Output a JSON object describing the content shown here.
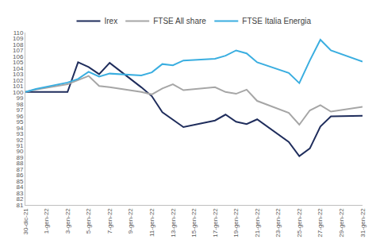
{
  "chart_data": {
    "type": "line",
    "categories": [
      "30-dic-21",
      null,
      "1-gen-22",
      null,
      "3-gen-22",
      null,
      "5-gen-22",
      null,
      "7-gen-22",
      null,
      "9-gen-22",
      null,
      "11-gen-22",
      null,
      "13-gen-22",
      null,
      "15-gen-22",
      null,
      "17-gen-22",
      null,
      "19-gen-22",
      null,
      "21-gen-22",
      null,
      "23-gen-22",
      null,
      "25-gen-22",
      null,
      "27-gen-22",
      null,
      "29-gen-22",
      null,
      "31-gen-22"
    ],
    "series": [
      {
        "name": "Irex",
        "color": "#1f2d5c",
        "values": [
          100,
          100,
          null,
          null,
          100,
          105,
          104.2,
          103,
          104.9,
          null,
          null,
          100.8,
          99.3,
          96.6,
          95.4,
          94.1,
          null,
          null,
          95.2,
          96.2,
          95.0,
          94.6,
          95.4,
          null,
          null,
          91.6,
          89.2,
          90.5,
          94.2,
          95.9,
          null,
          null,
          96.0
        ]
      },
      {
        "name": "FTSE All share",
        "color": "#a6a6a6",
        "values": [
          100,
          100.4,
          null,
          null,
          101.3,
          102.0,
          102.7,
          101.0,
          100.8,
          null,
          null,
          100.0,
          99.6,
          100.6,
          101.3,
          100.3,
          null,
          null,
          100.8,
          100.0,
          99.7,
          100.4,
          98.5,
          null,
          null,
          96.5,
          94.5,
          96.9,
          97.8,
          96.7,
          null,
          null,
          97.5
        ]
      },
      {
        "name": "FTSE Italia Energia",
        "color": "#3aaee0",
        "values": [
          100,
          100.5,
          null,
          null,
          101.6,
          102.2,
          103.4,
          102.6,
          103.1,
          null,
          null,
          102.8,
          103.3,
          104.7,
          104.5,
          105.3,
          null,
          null,
          105.6,
          106.1,
          107.0,
          106.5,
          105.0,
          null,
          null,
          103.2,
          101.5,
          105.3,
          108.8,
          107.0,
          null,
          null,
          105.1
        ]
      }
    ],
    "ylim": [
      81,
      110
    ],
    "yticks": [
      81,
      82,
      83,
      84,
      85,
      86,
      87,
      88,
      89,
      90,
      91,
      92,
      93,
      94,
      95,
      96,
      97,
      98,
      99,
      100,
      101,
      102,
      103,
      104,
      105,
      106,
      107,
      108,
      109,
      110
    ],
    "grid": false,
    "legend": "top"
  }
}
